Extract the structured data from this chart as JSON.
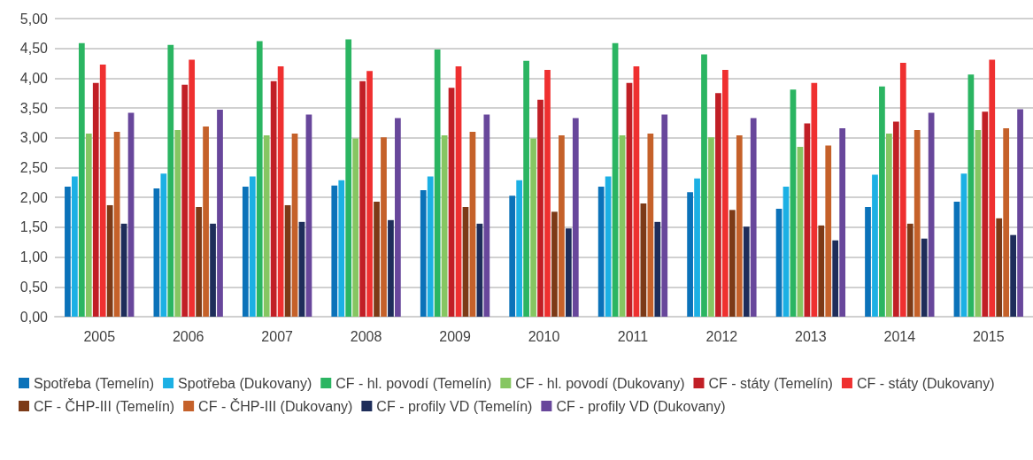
{
  "chart_data": {
    "type": "bar",
    "categories": [
      "2005",
      "2006",
      "2007",
      "2008",
      "2009",
      "2010",
      "2011",
      "2012",
      "2013",
      "2014",
      "2015"
    ],
    "series": [
      {
        "name": "Spotřeba (Temelín)",
        "color": "#0b72b9",
        "values": [
          2.18,
          2.15,
          2.18,
          2.2,
          2.12,
          2.03,
          2.18,
          2.09,
          1.81,
          1.84,
          1.93
        ]
      },
      {
        "name": "Spotřeba (Dukovany)",
        "color": "#1cb0e4",
        "values": [
          2.35,
          2.4,
          2.35,
          2.29,
          2.35,
          2.29,
          2.35,
          2.32,
          2.18,
          2.38,
          2.4
        ]
      },
      {
        "name": "CF - hl. povodí (Temelín)",
        "color": "#2bb562",
        "values": [
          4.59,
          4.56,
          4.62,
          4.65,
          4.48,
          4.29,
          4.59,
          4.4,
          3.81,
          3.86,
          4.06
        ]
      },
      {
        "name": "CF - hl. povodí (Dukovany)",
        "color": "#86c662",
        "values": [
          3.07,
          3.13,
          3.04,
          2.99,
          3.04,
          2.99,
          3.04,
          3.01,
          2.85,
          3.07,
          3.13
        ]
      },
      {
        "name": "CF - státy (Temelín)",
        "color": "#c11f26",
        "values": [
          3.92,
          3.89,
          3.95,
          3.95,
          3.84,
          3.64,
          3.92,
          3.75,
          3.24,
          3.27,
          3.44
        ]
      },
      {
        "name": "CF - státy (Dukovany)",
        "color": "#ef3030",
        "values": [
          4.23,
          4.31,
          4.2,
          4.12,
          4.2,
          4.14,
          4.2,
          4.14,
          3.92,
          4.26,
          4.31
        ]
      },
      {
        "name": "CF - ČHP-III (Temelín)",
        "color": "#7c3a17",
        "values": [
          1.87,
          1.84,
          1.87,
          1.93,
          1.84,
          1.76,
          1.9,
          1.79,
          1.53,
          1.56,
          1.65
        ]
      },
      {
        "name": "CF - ČHP-III (Dukovany)",
        "color": "#c5612a",
        "values": [
          3.1,
          3.19,
          3.07,
          3.01,
          3.1,
          3.04,
          3.07,
          3.04,
          2.87,
          3.13,
          3.16
        ]
      },
      {
        "name": "CF - profily VD (Temelín)",
        "color": "#1e2d5a",
        "values": [
          1.56,
          1.56,
          1.59,
          1.62,
          1.56,
          1.48,
          1.59,
          1.51,
          1.28,
          1.31,
          1.37
        ]
      },
      {
        "name": "CF - profily VD (Dukovany)",
        "color": "#68479b",
        "values": [
          3.42,
          3.47,
          3.39,
          3.33,
          3.39,
          3.33,
          3.39,
          3.33,
          3.16,
          3.42,
          3.48
        ]
      }
    ],
    "ylim": [
      0,
      5
    ],
    "yticks": [
      {
        "value": 0,
        "label": "0,00"
      },
      {
        "value": 0.5,
        "label": "0,50"
      },
      {
        "value": 1,
        "label": "1,00"
      },
      {
        "value": 1.5,
        "label": "1,50"
      },
      {
        "value": 2,
        "label": "2,00"
      },
      {
        "value": 2.5,
        "label": "2,50"
      },
      {
        "value": 3,
        "label": "3,00"
      },
      {
        "value": 3.5,
        "label": "3,50"
      },
      {
        "value": 4,
        "label": "4,00"
      },
      {
        "value": 4.5,
        "label": "4,50"
      },
      {
        "value": 5,
        "label": "5,00"
      }
    ],
    "grid": "y",
    "legend": "bottom"
  }
}
